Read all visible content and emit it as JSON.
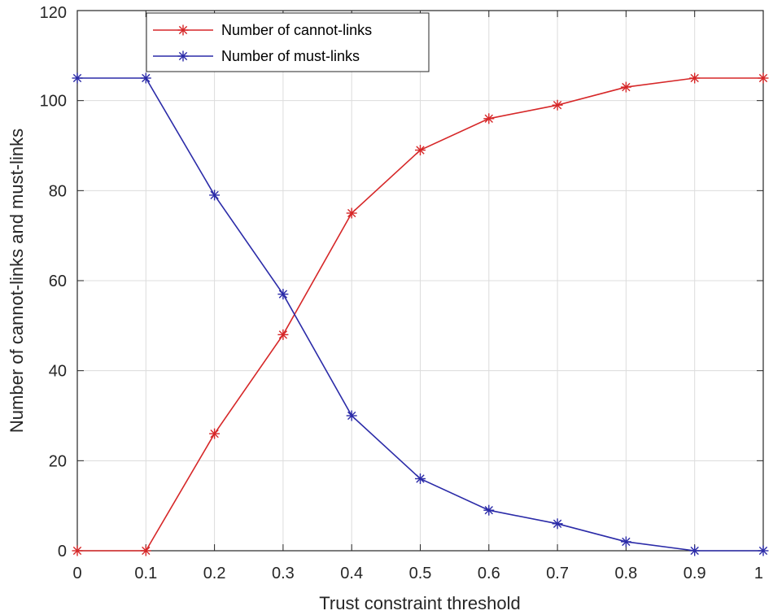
{
  "chart_data": {
    "type": "line",
    "xlabel": "Trust constraint threshold",
    "ylabel": "Number of cannot-links and must-links",
    "xlim": [
      0,
      1
    ],
    "ylim": [
      0,
      120
    ],
    "x": [
      0,
      0.1,
      0.2,
      0.3,
      0.4,
      0.5,
      0.6,
      0.7,
      0.8,
      0.9,
      1
    ],
    "x_ticks": [
      "0",
      "0.1",
      "0.2",
      "0.3",
      "0.4",
      "0.5",
      "0.6",
      "0.7",
      "0.8",
      "0.9",
      "1"
    ],
    "y_ticks": [
      "0",
      "20",
      "40",
      "60",
      "80",
      "100",
      "120"
    ],
    "grid": true,
    "legend_position": "top-left",
    "marker": "asterisk",
    "series": [
      {
        "name": "Number of cannot-links",
        "color": "#d62728",
        "values": [
          0,
          0,
          26,
          48,
          75,
          89,
          96,
          99,
          103,
          105,
          105
        ]
      },
      {
        "name": "Number of must-links",
        "color": "#2b2ba8",
        "values": [
          105,
          105,
          79,
          57,
          30,
          16,
          9,
          6,
          2,
          0,
          0
        ]
      }
    ]
  }
}
